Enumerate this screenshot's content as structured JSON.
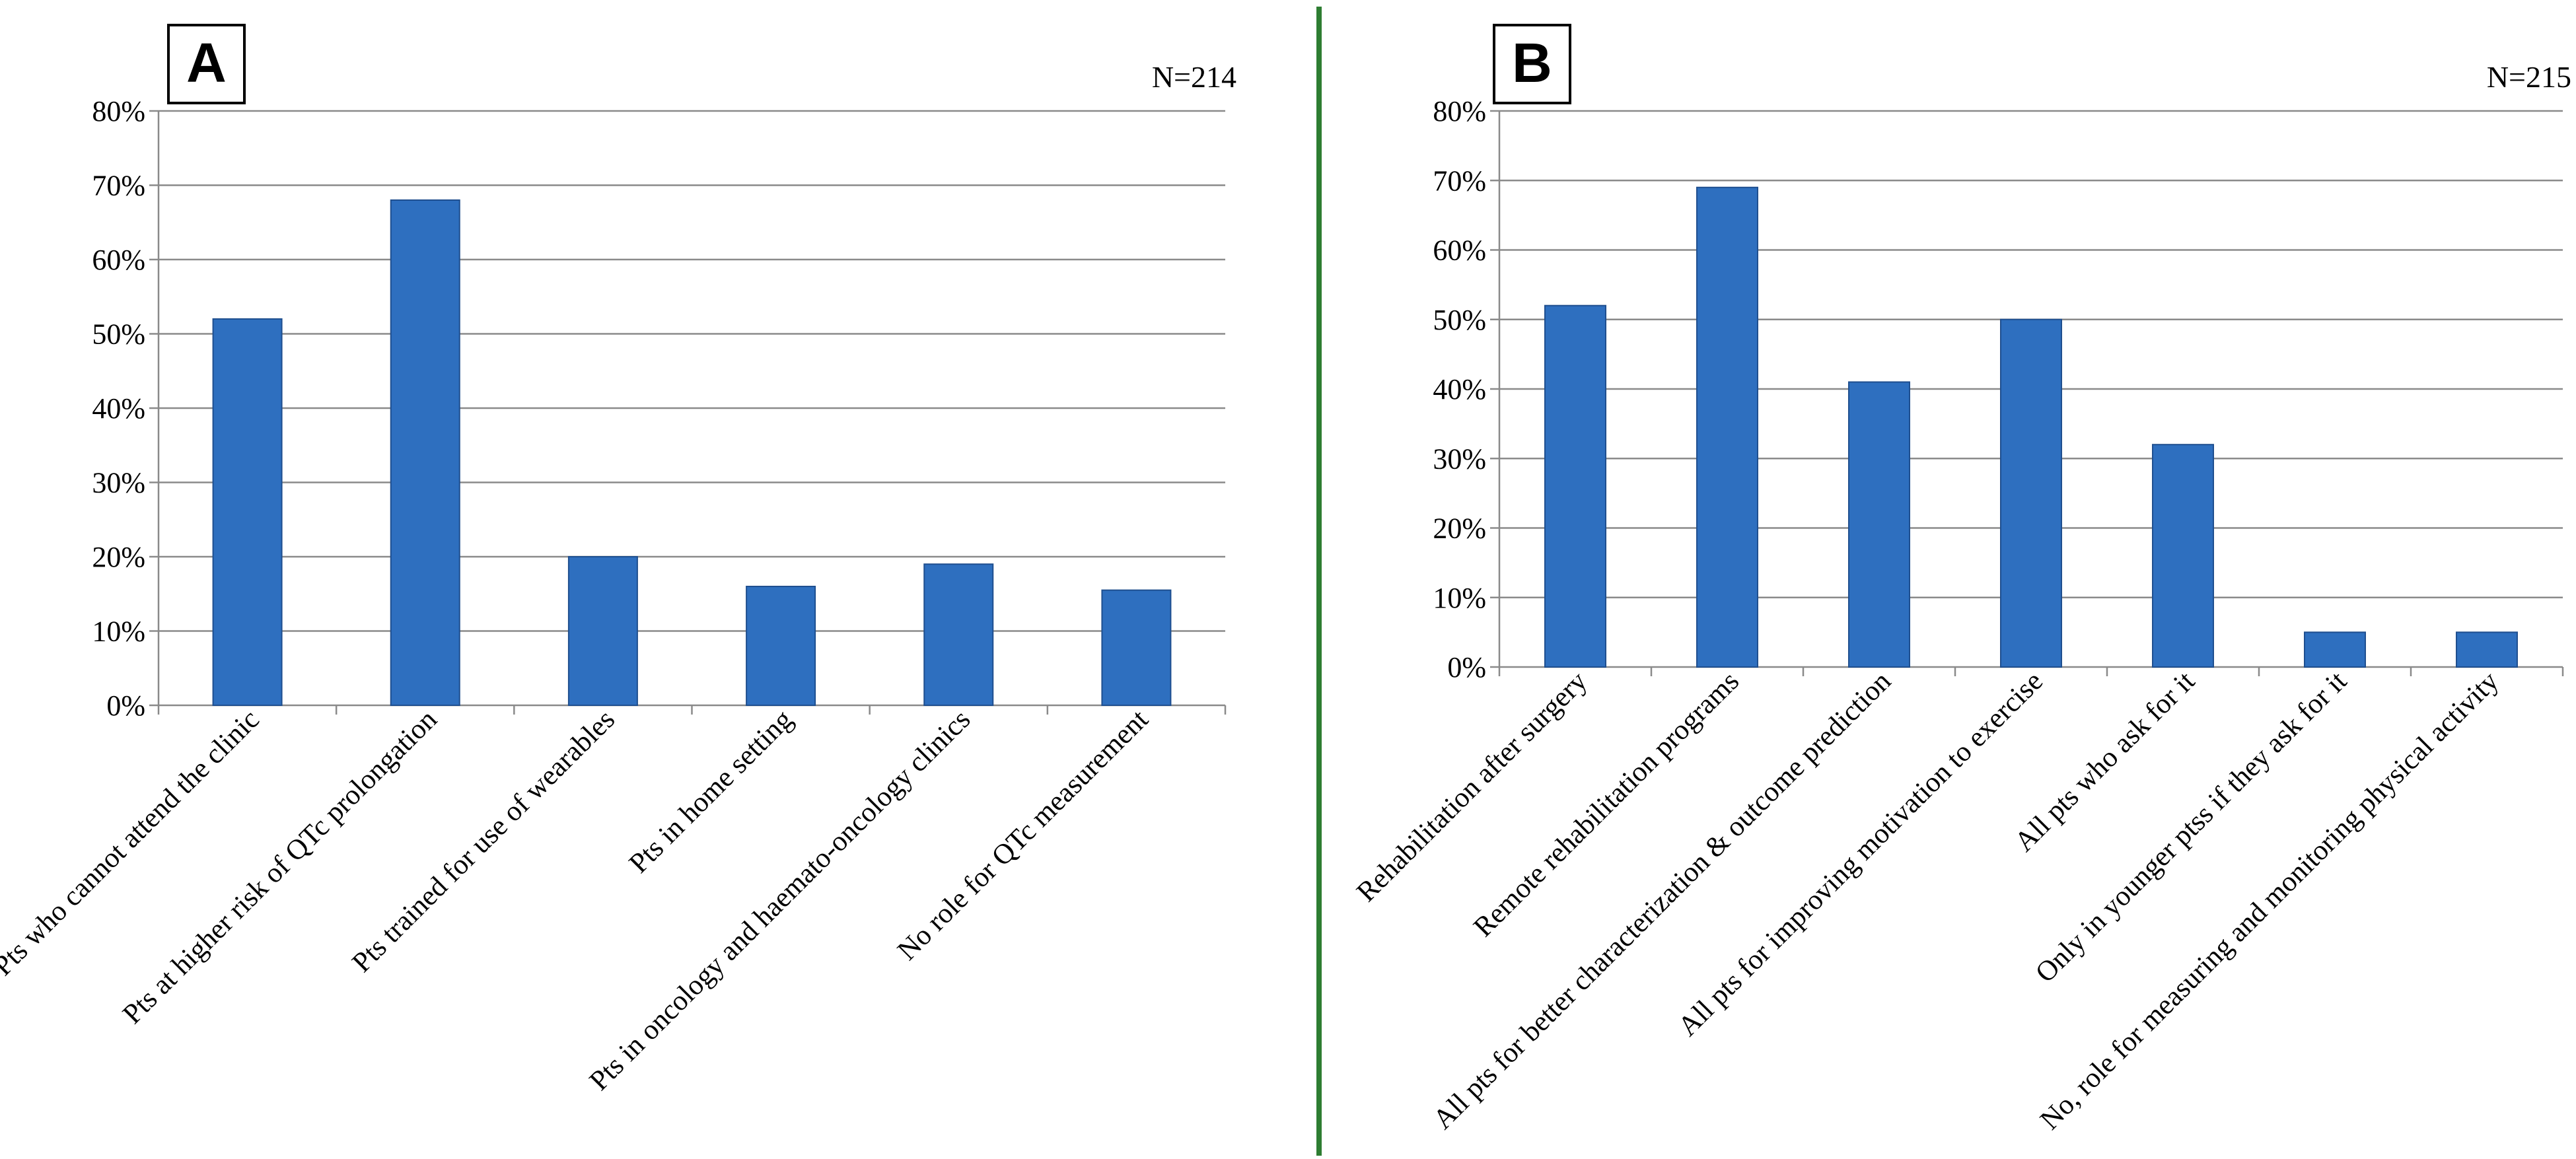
{
  "colors": {
    "bar": "#2e6fbf",
    "bar_edge": "#1f4f8f",
    "grid": "#8a8a8a",
    "divider": "#2e7d32"
  },
  "chart_data": [
    {
      "panel_label": "A",
      "n_label": "N=214",
      "type": "bar",
      "ylim": [
        0,
        80
      ],
      "yticks": [
        "0%",
        "10%",
        "20%",
        "30%",
        "40%",
        "50%",
        "60%",
        "70%",
        "80%"
      ],
      "grid": true,
      "categories": [
        "Pts who cannot attend the clinic",
        "Pts at higher risk of QTc prolongation",
        "Pts trained for use of wearables",
        "Pts in home setting",
        "Pts in oncology and haemato-oncology clinics",
        "No role for QTc measurement"
      ],
      "values": [
        52,
        68,
        20,
        16,
        19,
        15.5
      ]
    },
    {
      "panel_label": "B",
      "n_label": "N=215",
      "type": "bar",
      "ylim": [
        0,
        80
      ],
      "yticks": [
        "0%",
        "10%",
        "20%",
        "30%",
        "40%",
        "50%",
        "60%",
        "70%",
        "80%"
      ],
      "grid": true,
      "categories": [
        "Rehabilitation after surgery",
        "Remote rehabilitation programs",
        "All pts for better characterization & outcome prediction",
        "All pts for improving motivation to exercise",
        "All pts who ask for it",
        "Only in younger ptss if they ask for it",
        "No, role for measuring and monitoring physical activity"
      ],
      "values": [
        52,
        69,
        41,
        50,
        32,
        5,
        5
      ]
    }
  ]
}
